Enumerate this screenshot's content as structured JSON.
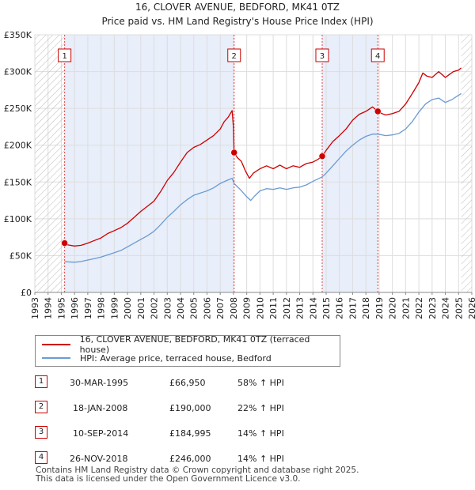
{
  "header": {
    "title": "16, CLOVER AVENUE, BEDFORD, MK41 0TZ",
    "subtitle": "Price paid vs. HM Land Registry's House Price Index (HPI)"
  },
  "colors": {
    "property": "#cc0000",
    "hpi": "#6b9bd2",
    "shade": "#e8eefa",
    "grid": "#dddddd"
  },
  "legend": {
    "property_label": "16, CLOVER AVENUE, BEDFORD, MK41 0TZ (terraced house)",
    "hpi_label": "HPI: Average price, terraced house, Bedford"
  },
  "sales": [
    {
      "num": "1",
      "date": "30-MAR-1995",
      "price": "£66,950",
      "hpi": "58% ↑ HPI"
    },
    {
      "num": "2",
      "date": "18-JAN-2008",
      "price": "£190,000",
      "hpi": "22% ↑ HPI"
    },
    {
      "num": "3",
      "date": "10-SEP-2014",
      "price": "£184,995",
      "hpi": "14% ↑ HPI"
    },
    {
      "num": "4",
      "date": "26-NOV-2018",
      "price": "£246,000",
      "hpi": "14% ↑ HPI"
    }
  ],
  "footer": {
    "line1": "Contains HM Land Registry data © Crown copyright and database right 2025.",
    "line2": "This data is licensed under the Open Government Licence v3.0."
  },
  "chart_data": {
    "type": "line",
    "title": "16, CLOVER AVENUE, BEDFORD, MK41 0TZ",
    "subtitle": "Price paid vs. HM Land Registry's House Price Index (HPI)",
    "xlim": [
      1993,
      2026
    ],
    "ylim": [
      0,
      350000
    ],
    "y_ticks": [
      {
        "v": 0,
        "label": "£0"
      },
      {
        "v": 50000,
        "label": "£50K"
      },
      {
        "v": 100000,
        "label": "£100K"
      },
      {
        "v": 150000,
        "label": "£150K"
      },
      {
        "v": 200000,
        "label": "£200K"
      },
      {
        "v": 250000,
        "label": "£250K"
      },
      {
        "v": 300000,
        "label": "£300K"
      },
      {
        "v": 350000,
        "label": "£350K"
      }
    ],
    "x_ticks": [
      "1993",
      "1994",
      "1995",
      "1996",
      "1997",
      "1998",
      "1999",
      "2000",
      "2001",
      "2002",
      "2003",
      "2004",
      "2005",
      "2006",
      "2007",
      "2008",
      "2009",
      "2010",
      "2011",
      "2012",
      "2013",
      "2014",
      "2015",
      "2016",
      "2017",
      "2018",
      "2019",
      "2020",
      "2021",
      "2022",
      "2023",
      "2024",
      "2025",
      "2026"
    ],
    "shaded_ranges": [
      [
        1995.25,
        2008.05
      ],
      [
        2014.7,
        2018.9
      ]
    ],
    "hatched_ranges": [
      [
        1993,
        1995.25
      ],
      [
        2025.2,
        2026
      ]
    ],
    "markers": [
      {
        "label": "1",
        "x": 1995.25,
        "y": 66950
      },
      {
        "label": "2",
        "x": 2008.05,
        "y": 190000
      },
      {
        "label": "3",
        "x": 2014.7,
        "y": 184995
      },
      {
        "label": "4",
        "x": 2018.9,
        "y": 246000
      }
    ],
    "series": [
      {
        "name": "16, CLOVER AVENUE, BEDFORD, MK41 0TZ (terraced house)",
        "color": "#cc0000",
        "x": [
          1995.25,
          1995.5,
          1996,
          1996.5,
          1997,
          1997.5,
          1998,
          1998.5,
          1999,
          1999.5,
          2000,
          2000.5,
          2001,
          2001.5,
          2002,
          2002.5,
          2003,
          2003.5,
          2004,
          2004.5,
          2005,
          2005.5,
          2006,
          2006.5,
          2007,
          2007.3,
          2007.6,
          2007.9,
          2008.0,
          2008.05,
          2008.3,
          2008.6,
          2008.9,
          2009.2,
          2009.5,
          2010,
          2010.5,
          2011,
          2011.5,
          2012,
          2012.5,
          2013,
          2013.5,
          2014,
          2014.4,
          2014.7,
          2015,
          2015.5,
          2016,
          2016.5,
          2017,
          2017.5,
          2018,
          2018.5,
          2018.9,
          2019.2,
          2019.5,
          2020,
          2020.5,
          2021,
          2021.5,
          2022,
          2022.3,
          2022.6,
          2023,
          2023.5,
          2024,
          2024.3,
          2024.6,
          2025,
          2025.2
        ],
        "y": [
          66950,
          64500,
          63000,
          64000,
          67000,
          70500,
          74000,
          80000,
          84000,
          88000,
          94000,
          102000,
          110000,
          117000,
          124000,
          137000,
          152000,
          163000,
          177000,
          190000,
          197000,
          201000,
          207000,
          213000,
          222000,
          232000,
          238000,
          247000,
          224000,
          190000,
          183000,
          178000,
          165000,
          155000,
          162000,
          168000,
          172000,
          168000,
          173000,
          168000,
          172000,
          170000,
          175000,
          177000,
          181000,
          184995,
          193000,
          205000,
          213000,
          222000,
          234000,
          242000,
          246000,
          252000,
          246000,
          243000,
          241000,
          243000,
          246000,
          256000,
          270000,
          285000,
          298000,
          294000,
          292000,
          300000,
          292000,
          296000,
          300000,
          302000,
          305000
        ]
      },
      {
        "name": "HPI: Average price, terraced house, Bedford",
        "color": "#6b9bd2",
        "x": [
          1995.25,
          1995.5,
          1996,
          1996.5,
          1997,
          1997.5,
          1998,
          1998.5,
          1999,
          1999.5,
          2000,
          2000.5,
          2001,
          2001.5,
          2002,
          2002.5,
          2003,
          2003.5,
          2004,
          2004.5,
          2005,
          2005.5,
          2006,
          2006.5,
          2007,
          2007.5,
          2007.9,
          2008.05,
          2008.5,
          2009,
          2009.3,
          2009.6,
          2010,
          2010.5,
          2011,
          2011.5,
          2012,
          2012.5,
          2013,
          2013.5,
          2014,
          2014.7,
          2015,
          2015.5,
          2016,
          2016.5,
          2017,
          2017.5,
          2018,
          2018.5,
          2018.9,
          2019.5,
          2020,
          2020.5,
          2021,
          2021.5,
          2022,
          2022.5,
          2023,
          2023.5,
          2024,
          2024.5,
          2025,
          2025.2
        ],
        "y": [
          42000,
          41500,
          41000,
          42000,
          44000,
          46000,
          48000,
          51000,
          54000,
          57000,
          62000,
          67000,
          72000,
          77000,
          83000,
          92000,
          102000,
          110000,
          119000,
          126000,
          132000,
          135000,
          138000,
          142000,
          148000,
          152000,
          155000,
          148000,
          140000,
          130000,
          125000,
          131000,
          138000,
          141000,
          140000,
          142000,
          140000,
          142000,
          143000,
          146000,
          151000,
          157000,
          162000,
          172000,
          182000,
          192000,
          200000,
          207000,
          212000,
          215000,
          215000,
          213000,
          214000,
          216000,
          222000,
          232000,
          245000,
          256000,
          262000,
          264000,
          258000,
          262000,
          268000,
          270000
        ]
      }
    ]
  }
}
